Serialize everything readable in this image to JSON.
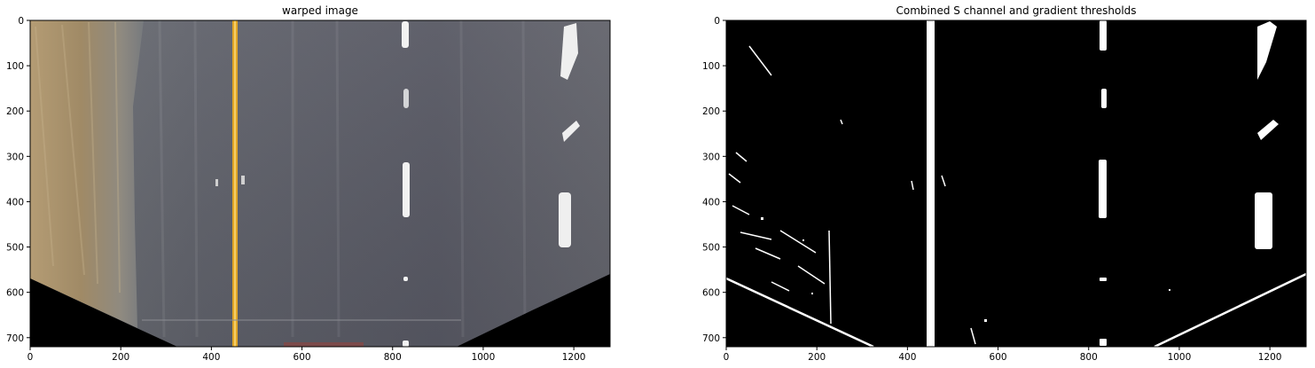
{
  "figure": {
    "panels": [
      {
        "title": "warped image",
        "x_ticks": [
          "0",
          "200",
          "400",
          "600",
          "800",
          "1000",
          "1200"
        ],
        "y_ticks": [
          "0",
          "100",
          "200",
          "300",
          "400",
          "500",
          "600",
          "700"
        ]
      },
      {
        "title": "Combined S channel and gradient thresholds",
        "x_ticks": [
          "0",
          "200",
          "400",
          "600",
          "800",
          "1000",
          "1200"
        ],
        "y_ticks": [
          "0",
          "100",
          "200",
          "300",
          "400",
          "500",
          "600",
          "700"
        ]
      }
    ]
  },
  "image_extent": {
    "x": [
      0,
      1280
    ],
    "y": [
      720,
      0
    ]
  },
  "colors": {
    "road_gray": "#5b5c65",
    "dirt_tan": "#a08d6a",
    "yellow_line": "#e0a526",
    "lane_white": "#f4f4f4",
    "binary_bg": "#000000",
    "binary_fg": "#ffffff"
  }
}
